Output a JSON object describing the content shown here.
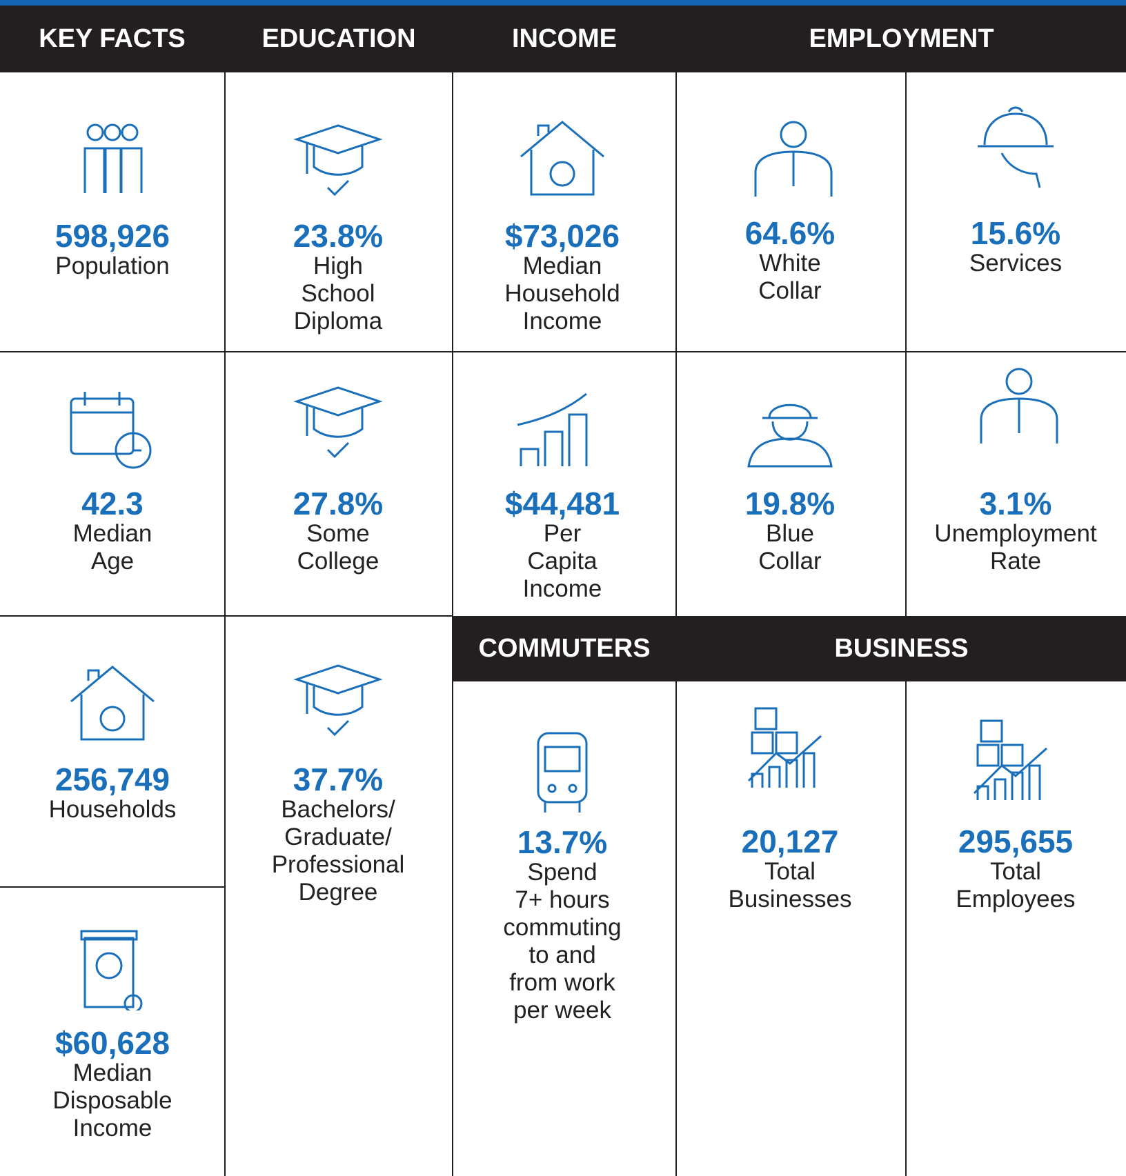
{
  "headers": [
    "KEY FACTS",
    "EDUCATION",
    "INCOME",
    "EMPLOYMENT",
    "COMMUTERS",
    "BUSINESS"
  ],
  "cells": [
    {
      "value": "598,926",
      "label": [
        "Population"
      ]
    },
    {
      "value": "23.8%",
      "label": [
        "High",
        "School",
        "Diploma"
      ]
    },
    {
      "value": "$73,026",
      "label": [
        "Median",
        "Household",
        "Income"
      ]
    },
    {
      "value": "64.6%",
      "label": [
        "White",
        "Collar"
      ]
    },
    {
      "value": "15.6%",
      "label": [
        "Services"
      ]
    },
    {
      "value": "42.3",
      "label": [
        "Median",
        "Age"
      ]
    },
    {
      "value": "27.8%",
      "label": [
        "Some",
        "College"
      ]
    },
    {
      "value": "$44,481",
      "label": [
        "Per",
        "Capita",
        "Income"
      ]
    },
    {
      "value": "19.8%",
      "label": [
        "Blue",
        "Collar"
      ]
    },
    {
      "value": "3.1%",
      "label": [
        "Unemployment",
        "Rate"
      ]
    },
    {
      "value": "256,749",
      "label": [
        "Households"
      ]
    },
    {
      "value": "37.7%",
      "label": [
        "Bachelors/",
        "Graduate/",
        "Professional",
        "Degree"
      ]
    },
    {
      "value": "13.7%",
      "label": [
        "Spend",
        "7+ hours",
        "commuting",
        "to and",
        "from work",
        "per week"
      ]
    },
    {
      "value": "20,127",
      "label": [
        "Total",
        "Businesses"
      ]
    },
    {
      "value": "295,655",
      "label": [
        "Total",
        "Employees"
      ]
    },
    {
      "value": "$60,628",
      "label": [
        "Median",
        "Disposable",
        "Income"
      ]
    }
  ]
}
